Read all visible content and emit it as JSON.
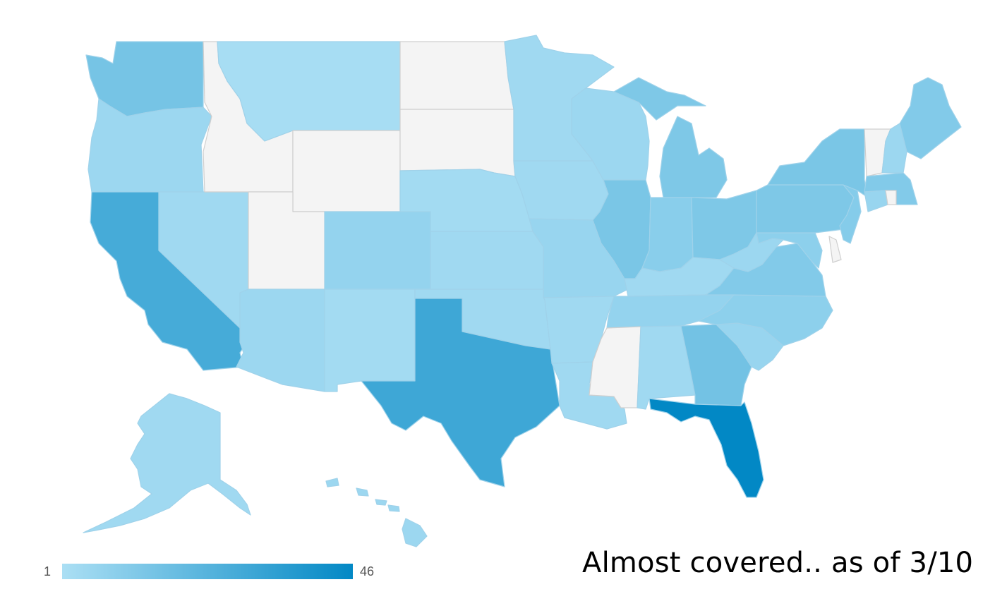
{
  "caption": "Almost covered.. as of 3/10",
  "legend": {
    "min_label": "1",
    "max_label": "46",
    "min_value": 1,
    "max_value": 46,
    "color_min": "#abdff4",
    "color_max": "#0288c5"
  },
  "no_data_color": "#f4f4f4",
  "states": [
    {
      "name": "Washington",
      "value": 15
    },
    {
      "name": "Oregon",
      "value": 5
    },
    {
      "name": "California",
      "value": 28
    },
    {
      "name": "Nevada",
      "value": 4
    },
    {
      "name": "Idaho",
      "value": null
    },
    {
      "name": "Montana",
      "value": 2
    },
    {
      "name": "Wyoming",
      "value": null
    },
    {
      "name": "Utah",
      "value": null
    },
    {
      "name": "Arizona",
      "value": 5
    },
    {
      "name": "Colorado",
      "value": 7
    },
    {
      "name": "New Mexico",
      "value": 3
    },
    {
      "name": "North Dakota",
      "value": null
    },
    {
      "name": "South Dakota",
      "value": null
    },
    {
      "name": "Nebraska",
      "value": 3
    },
    {
      "name": "Kansas",
      "value": 4
    },
    {
      "name": "Oklahoma",
      "value": 4
    },
    {
      "name": "Texas",
      "value": 30
    },
    {
      "name": "Minnesota",
      "value": 4
    },
    {
      "name": "Iowa",
      "value": 4
    },
    {
      "name": "Missouri",
      "value": 6
    },
    {
      "name": "Arkansas",
      "value": 4
    },
    {
      "name": "Louisiana",
      "value": 4
    },
    {
      "name": "Wisconsin",
      "value": 5
    },
    {
      "name": "Illinois",
      "value": 14
    },
    {
      "name": "Michigan",
      "value": 13
    },
    {
      "name": "Indiana",
      "value": 10
    },
    {
      "name": "Ohio",
      "value": 13
    },
    {
      "name": "Kentucky",
      "value": 4
    },
    {
      "name": "Tennessee",
      "value": 7
    },
    {
      "name": "Mississippi",
      "value": null
    },
    {
      "name": "Alabama",
      "value": 4
    },
    {
      "name": "Georgia",
      "value": 16
    },
    {
      "name": "Florida",
      "value": 46
    },
    {
      "name": "South Carolina",
      "value": 6
    },
    {
      "name": "North Carolina",
      "value": 9
    },
    {
      "name": "Virginia",
      "value": 12
    },
    {
      "name": "West Virginia",
      "value": 5
    },
    {
      "name": "Pennsylvania",
      "value": 13
    },
    {
      "name": "New York",
      "value": 14
    },
    {
      "name": "Vermont",
      "value": null
    },
    {
      "name": "New Hampshire",
      "value": 5
    },
    {
      "name": "Maine",
      "value": 12
    },
    {
      "name": "Massachusetts",
      "value": 12
    },
    {
      "name": "Connecticut",
      "value": 6
    },
    {
      "name": "Rhode Island",
      "value": null
    },
    {
      "name": "New Jersey",
      "value": 11
    },
    {
      "name": "Delaware",
      "value": null
    },
    {
      "name": "Maryland",
      "value": 9
    },
    {
      "name": "Alaska",
      "value": 4
    },
    {
      "name": "Hawaii",
      "value": 5
    }
  ]
}
